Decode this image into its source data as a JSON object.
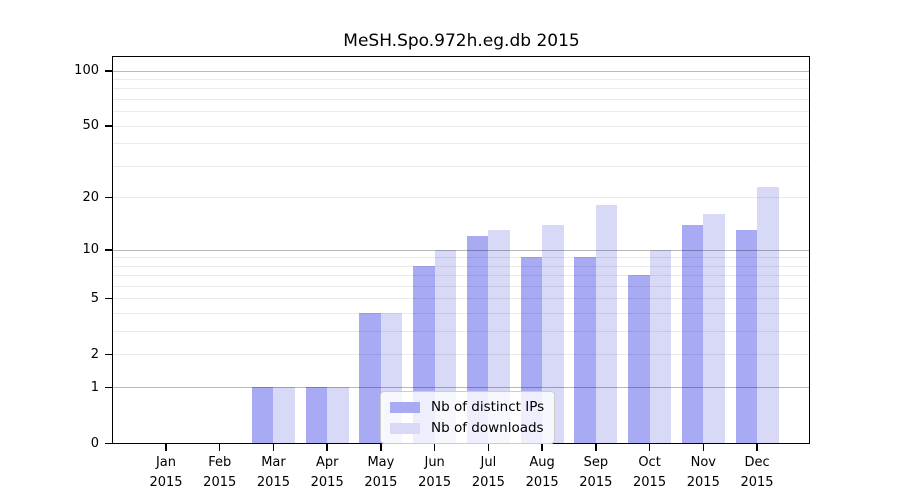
{
  "chart_data": {
    "type": "bar",
    "title": "MeSH.Spo.972h.eg.db 2015",
    "categories": [
      "Jan 2015",
      "Feb 2015",
      "Mar 2015",
      "Apr 2015",
      "May 2015",
      "Jun 2015",
      "Jul 2015",
      "Aug 2015",
      "Sep 2015",
      "Oct 2015",
      "Nov 2015",
      "Dec 2015"
    ],
    "months": [
      "Jan",
      "Feb",
      "Mar",
      "Apr",
      "May",
      "Jun",
      "Jul",
      "Aug",
      "Sep",
      "Oct",
      "Nov",
      "Dec"
    ],
    "year": "2015",
    "series": [
      {
        "name": "Nb of distinct IPs",
        "color": "#a8aaf4",
        "values": [
          0,
          0,
          1,
          1,
          4,
          8,
          12,
          9,
          9,
          7,
          14,
          13
        ]
      },
      {
        "name": "Nb of downloads",
        "color": "#d8d9f7",
        "values": [
          0,
          0,
          1,
          1,
          4,
          10,
          13,
          14,
          18,
          10,
          16,
          23
        ]
      }
    ],
    "xlabel": "",
    "ylabel": "",
    "yscale": "log1p",
    "ylim": [
      0,
      120
    ],
    "y_tick_values": [
      0,
      1,
      2,
      5,
      10,
      20,
      50,
      100
    ],
    "y_tick_labels": [
      "0",
      "1",
      "2",
      "5",
      "10",
      "20",
      "50",
      "100"
    ],
    "y_major_gridlines": [
      1,
      10,
      100
    ],
    "y_minor_gridlines": [
      2,
      3,
      4,
      5,
      6,
      7,
      8,
      9,
      20,
      30,
      40,
      50,
      60,
      70,
      80,
      90
    ],
    "grid": true,
    "legend_position": "lower center"
  }
}
